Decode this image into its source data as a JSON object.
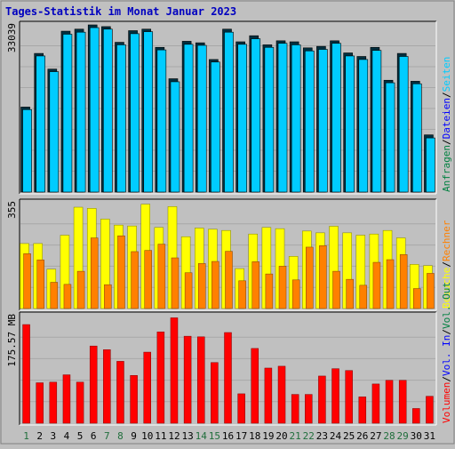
{
  "colors": {
    "background": "#c0c0c0",
    "plot_bg": "#c0c0c0",
    "grid": "#a8a8a8",
    "border_dark": "#000000",
    "title": "#0000c0",
    "axis_text": "#000000",
    "weekday_text": "#000000",
    "weekend_text": "#206e3c",
    "hits": "#008040",
    "files": "#0000ff",
    "pages": "#00ccff",
    "visits": "#ffff00",
    "sites": "#ff8000",
    "kbytes": "#ff0000",
    "in": "#0000ff",
    "out": "#008040"
  },
  "chart_data": {
    "type": "bar",
    "title": "Tages-Statistik im Monat Januar 2023",
    "categories": [
      "1",
      "2",
      "3",
      "4",
      "5",
      "6",
      "7",
      "8",
      "9",
      "10",
      "11",
      "12",
      "13",
      "14",
      "15",
      "16",
      "17",
      "18",
      "19",
      "20",
      "21",
      "22",
      "23",
      "24",
      "25",
      "26",
      "27",
      "28",
      "29",
      "30",
      "31"
    ],
    "weekend_categories": [
      "1",
      "7",
      "8",
      "14",
      "15",
      "21",
      "22",
      "28",
      "29"
    ],
    "grid": true,
    "panels": [
      {
        "name": "requests",
        "ymax_label": "33039",
        "ylim": [
          0,
          33039
        ],
        "right_labels": [
          {
            "text": "Anfragen",
            "color": "#008040"
          },
          {
            "text": "Dateien",
            "color": "#0000ff"
          },
          {
            "text": "Seiten",
            "color": "#00ccff"
          }
        ],
        "series": [
          {
            "name": "Anfragen",
            "color": "#008040",
            "values": [
              16800,
              27400,
              24300,
              31800,
              32200,
              33039,
              32700,
              29600,
              31900,
              32200,
              28600,
              22400,
              29800,
              29500,
              26200,
              32200,
              29700,
              30900,
              29100,
              29900,
              29700,
              28500,
              28800,
              29900,
              27500,
              26800,
              28600,
              22100,
              27400,
              21900,
              11300
            ]
          },
          {
            "name": "Seiten",
            "color": "#00ccff",
            "values": [
              16300,
              26900,
              23800,
              31200,
              31600,
              32500,
              32200,
              29100,
              31300,
              31700,
              28100,
              21800,
              29200,
              29000,
              25700,
              31600,
              29200,
              30300,
              28600,
              29400,
              29100,
              27900,
              28200,
              29400,
              26900,
              26200,
              28000,
              21600,
              26800,
              21400,
              10700
            ]
          }
        ]
      },
      {
        "name": "visits",
        "ymax_label": "355",
        "ylim": [
          0,
          355
        ],
        "right_labels": [
          {
            "text": "Besuche",
            "color": "#ffff00"
          },
          {
            "text": "Rechner",
            "color": "#ff8000"
          }
        ],
        "series": [
          {
            "name": "Besuche",
            "color": "#ffff00",
            "values": [
              218,
              218,
              132,
              246,
              340,
              336,
              300,
              280,
              277,
              350,
              272,
              342,
              241,
              270,
              266,
              262,
              134,
              250,
              272,
              268,
              175,
              260,
              254,
              276,
              254,
              246,
              250,
              262,
              237,
              148,
              144
            ]
          },
          {
            "name": "Rechner",
            "color": "#ff8000",
            "values": [
              184,
              163,
              88,
              81,
              125,
              237,
              80,
              244,
              191,
              195,
              216,
              170,
              120,
              151,
              158,
              192,
              93,
              157,
              116,
              142,
              96,
              206,
              211,
              125,
              98,
              78,
              155,
              164,
              181,
              67,
              118
            ]
          }
        ]
      },
      {
        "name": "volume",
        "ymax_label": "175.57 MB",
        "ylim": [
          0,
          175.57
        ],
        "right_labels": [
          {
            "text": "Volumen",
            "color": "#ff0000"
          },
          {
            "text": "Vol. In",
            "color": "#0000ff"
          },
          {
            "text": "Vol. Out",
            "color": "#008040"
          }
        ],
        "series": [
          {
            "name": "Volumen",
            "color": "#ff0000",
            "values": [
              161,
              66,
              67,
              79,
              67,
              126,
              120,
              101,
              78,
              116,
              149,
              172,
              142,
              141,
              99,
              148,
              48,
              122,
              90,
              93,
              47,
              47,
              77,
              89,
              86,
              43,
              64,
              70,
              70,
              24,
              44
            ]
          }
        ]
      }
    ],
    "slash": "/"
  }
}
